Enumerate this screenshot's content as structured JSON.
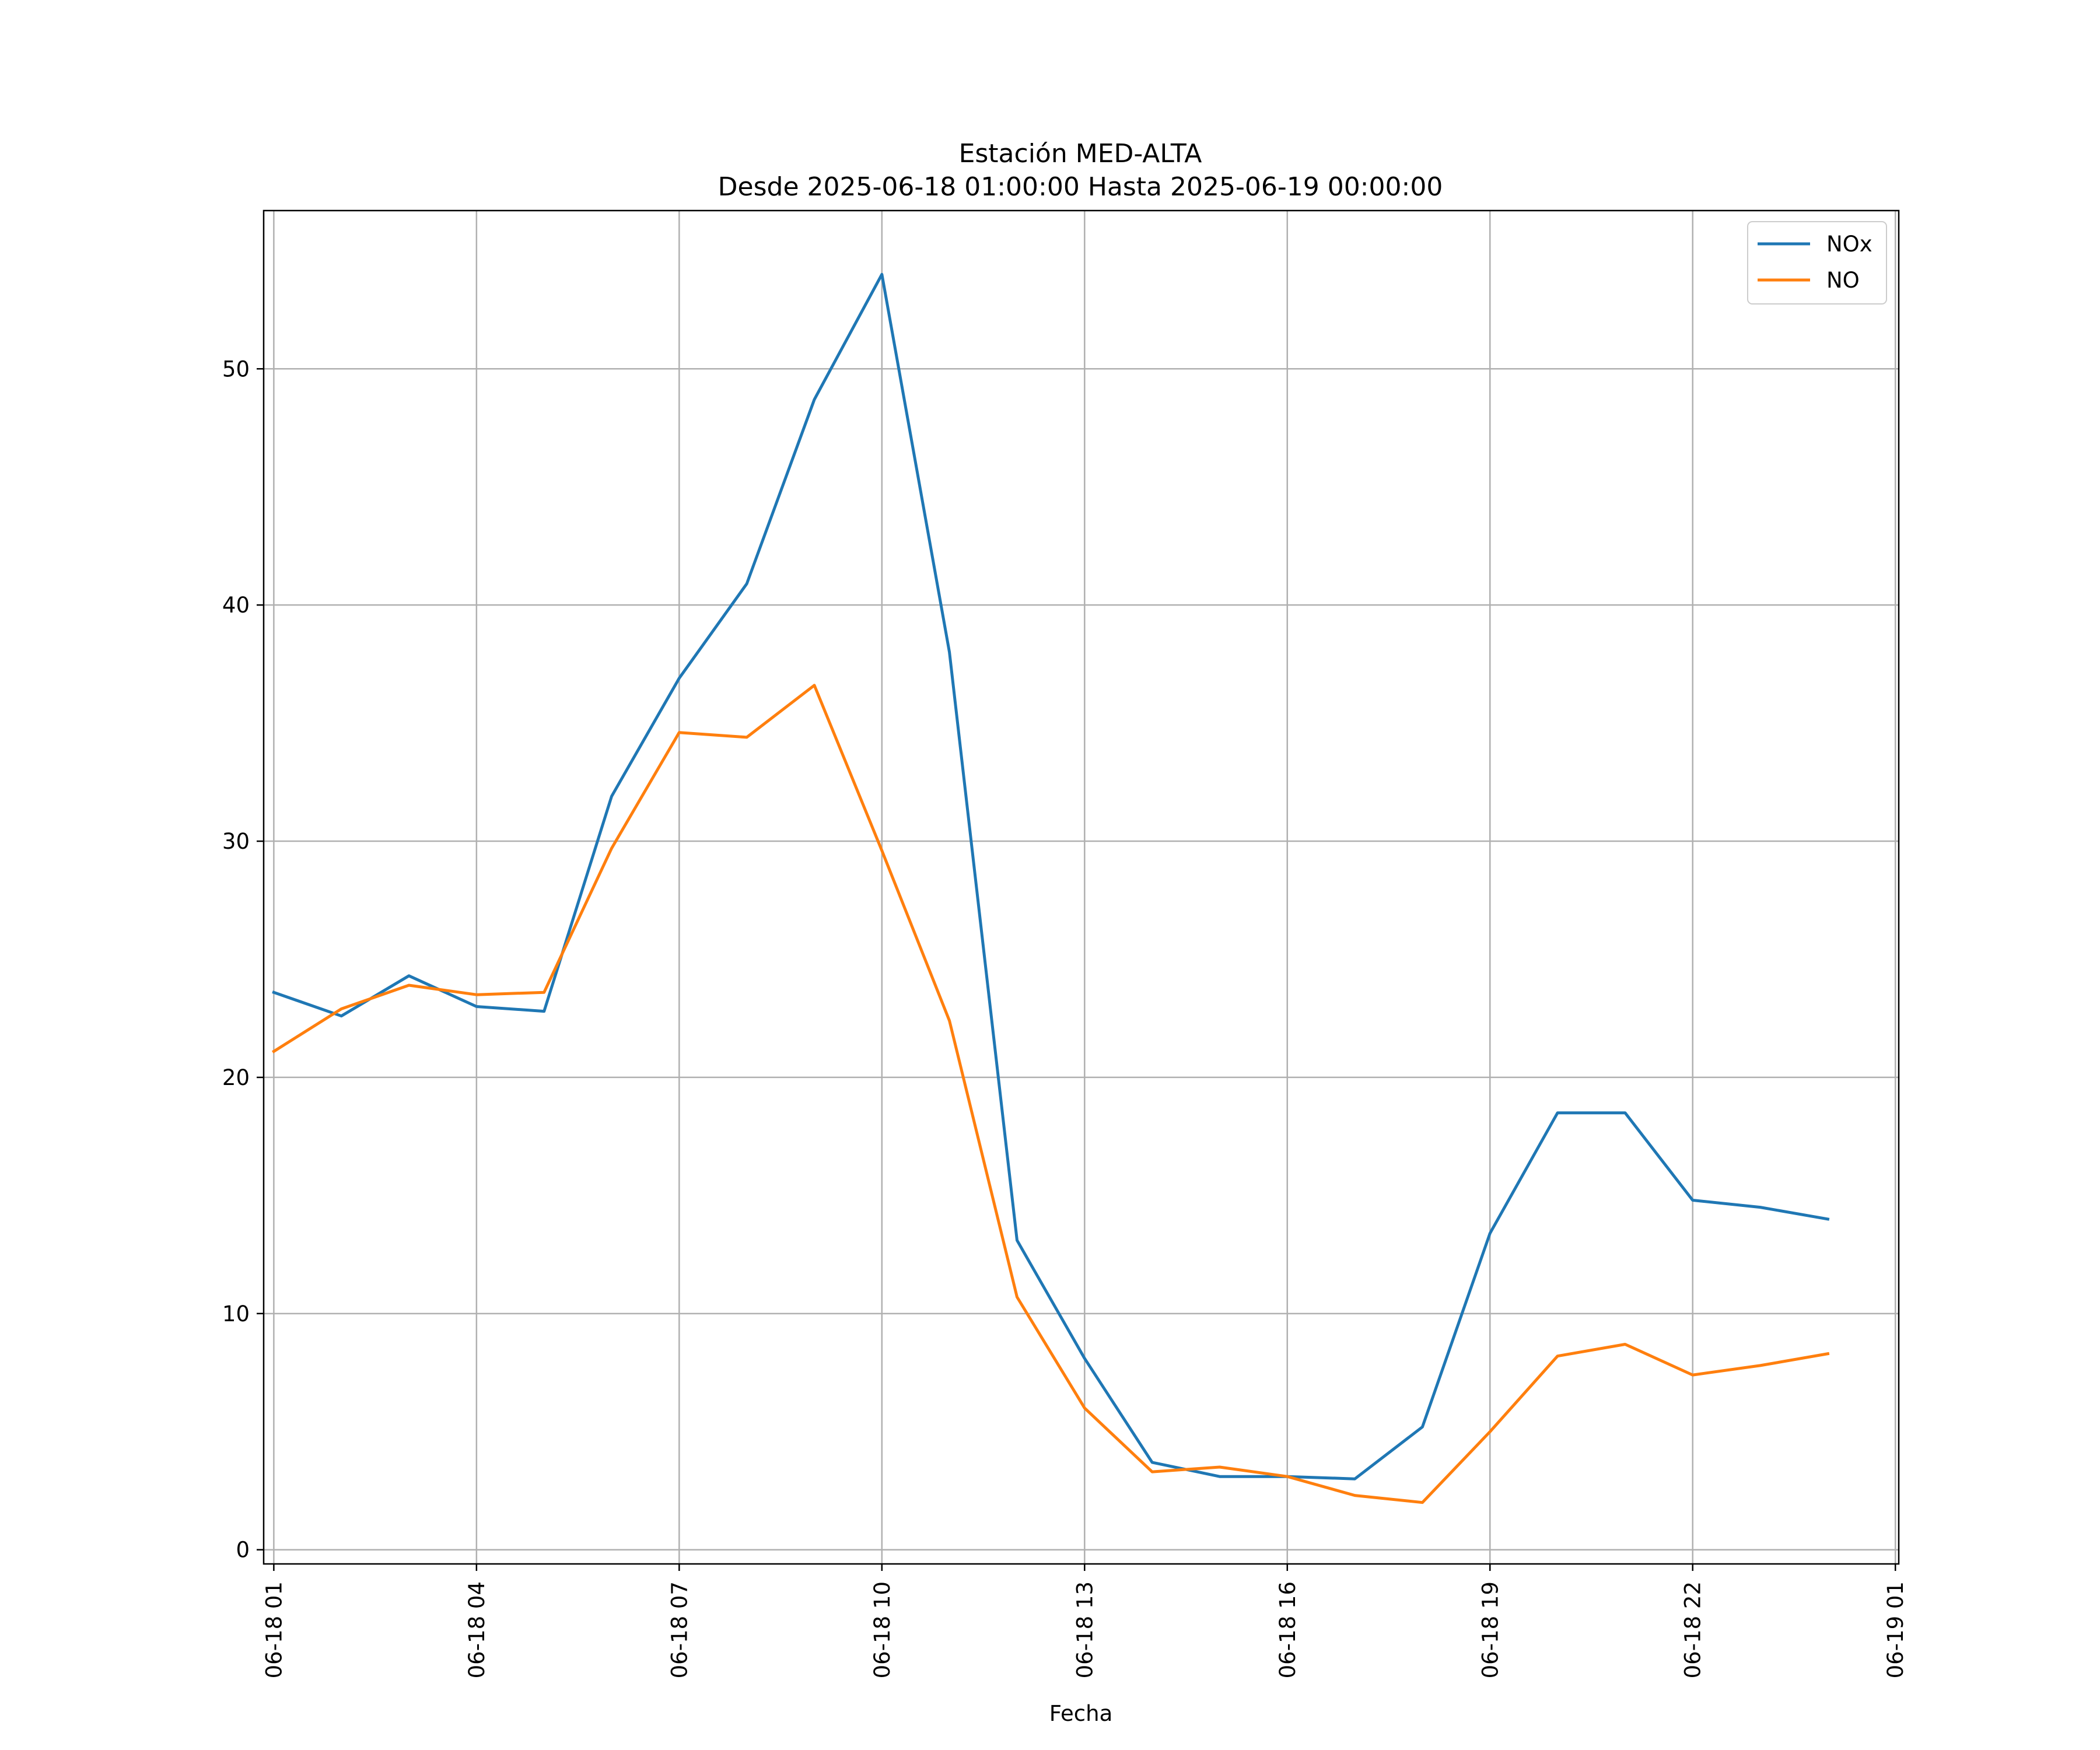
{
  "chart_data": {
    "type": "line",
    "title": "Estación MED-ALTA",
    "subtitle": "Desde 2025-06-18 01:00:00 Hasta 2025-06-19 00:00:00",
    "xlabel": "Fecha",
    "ylabel": "",
    "x": [
      "06-18 01",
      "06-18 02",
      "06-18 03",
      "06-18 04",
      "06-18 05",
      "06-18 06",
      "06-18 07",
      "06-18 08",
      "06-18 09",
      "06-18 10",
      "06-18 11",
      "06-18 12",
      "06-18 13",
      "06-18 14",
      "06-18 15",
      "06-18 16",
      "06-18 17",
      "06-18 18",
      "06-18 19",
      "06-18 20",
      "06-18 21",
      "06-18 22",
      "06-18 23",
      "06-19 00"
    ],
    "x_ticks": [
      "06-18 01",
      "06-18 04",
      "06-18 07",
      "06-18 10",
      "06-18 13",
      "06-18 16",
      "06-18 19",
      "06-18 22",
      "06-19 01"
    ],
    "y_ticks": [
      "0",
      "10",
      "20",
      "30",
      "40",
      "50"
    ],
    "ylim": [
      -0.6,
      56.7
    ],
    "xlim": [
      "06-18 00:51",
      "06-19 01:03"
    ],
    "grid": true,
    "legend_position": "top-right",
    "series": [
      {
        "name": "NOx",
        "color": "#1f77b4",
        "values": [
          23.6,
          22.6,
          24.3,
          23.0,
          22.8,
          31.9,
          36.9,
          40.9,
          48.7,
          54.0,
          38.0,
          13.1,
          8.1,
          3.7,
          3.1,
          3.1,
          3.0,
          5.2,
          13.4,
          18.5,
          18.5,
          14.8,
          14.5,
          14.0
        ]
      },
      {
        "name": "NO",
        "color": "#ff7f0e",
        "values": [
          21.1,
          22.9,
          23.9,
          23.5,
          23.6,
          29.7,
          34.6,
          34.4,
          36.6,
          29.6,
          22.4,
          10.7,
          6.0,
          3.3,
          3.5,
          3.1,
          2.3,
          2.0,
          5.0,
          8.2,
          8.7,
          7.4,
          7.8,
          8.3
        ]
      }
    ]
  }
}
